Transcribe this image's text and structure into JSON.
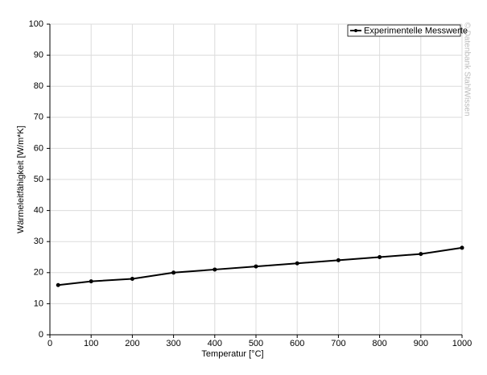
{
  "chart_data": {
    "type": "line",
    "x_label": "Temperatur [°C]",
    "y_label": "Wärmeleitfähigkeit [W/m*K]",
    "watermark": "© Datenbank StahlWissen",
    "x": [
      20,
      100,
      200,
      300,
      400,
      500,
      600,
      700,
      800,
      900,
      1000
    ],
    "series": [
      {
        "name": "Experimentelle Messwerte",
        "color": "#000000",
        "values": [
          16,
          17.2,
          18,
          20,
          21,
          22,
          23,
          24,
          25,
          26,
          28
        ]
      }
    ],
    "xlim": [
      0,
      1000
    ],
    "xticks": [
      0,
      100,
      200,
      300,
      400,
      500,
      600,
      700,
      800,
      900,
      1000
    ],
    "ylim": [
      0,
      100
    ],
    "yticks": [
      0,
      10,
      20,
      30,
      40,
      50,
      60,
      70,
      80,
      90,
      100
    ],
    "grid": true,
    "legend": "top-right"
  }
}
